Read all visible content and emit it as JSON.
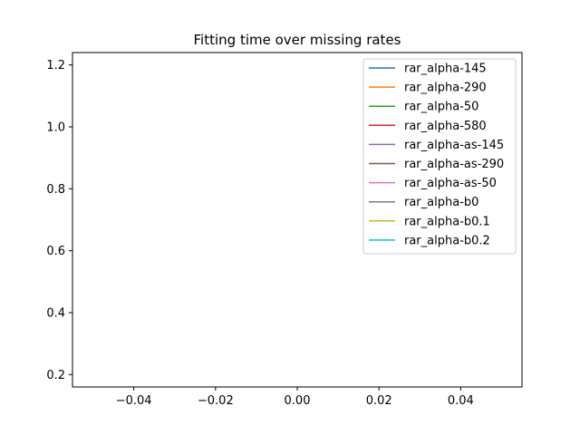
{
  "chart_data": {
    "type": "line",
    "title": "Fitting time over missing rates",
    "xlabel": "",
    "ylabel": "",
    "xlim": [
      -0.055,
      0.055
    ],
    "ylim": [
      0.16,
      1.24
    ],
    "x_ticks": [
      {
        "value": -0.04,
        "label": "−0.04"
      },
      {
        "value": -0.02,
        "label": "−0.02"
      },
      {
        "value": 0.0,
        "label": "0.00"
      },
      {
        "value": 0.02,
        "label": "0.02"
      },
      {
        "value": 0.04,
        "label": "0.04"
      }
    ],
    "y_ticks": [
      {
        "value": 0.2,
        "label": "0.2"
      },
      {
        "value": 0.4,
        "label": "0.4"
      },
      {
        "value": 0.6,
        "label": "0.6"
      },
      {
        "value": 0.8,
        "label": "0.8"
      },
      {
        "value": 1.0,
        "label": "1.0"
      },
      {
        "value": 1.2,
        "label": "1.2"
      }
    ],
    "grid": false,
    "legend_position": "top-right",
    "series": [
      {
        "name": "rar_alpha-145",
        "color": "#1f77b4",
        "x": [],
        "y": []
      },
      {
        "name": "rar_alpha-290",
        "color": "#ff7f0e",
        "x": [],
        "y": []
      },
      {
        "name": "rar_alpha-50",
        "color": "#2ca02c",
        "x": [],
        "y": []
      },
      {
        "name": "rar_alpha-580",
        "color": "#d62728",
        "x": [],
        "y": []
      },
      {
        "name": "rar_alpha-as-145",
        "color": "#9467bd",
        "x": [],
        "y": []
      },
      {
        "name": "rar_alpha-as-290",
        "color": "#8c564b",
        "x": [],
        "y": []
      },
      {
        "name": "rar_alpha-as-50",
        "color": "#e377c2",
        "x": [],
        "y": []
      },
      {
        "name": "rar_alpha-b0",
        "color": "#7f7f7f",
        "x": [],
        "y": []
      },
      {
        "name": "rar_alpha-b0.1",
        "color": "#bcbd22",
        "x": [],
        "y": []
      },
      {
        "name": "rar_alpha-b0.2",
        "color": "#17becf",
        "x": [],
        "y": []
      }
    ]
  }
}
